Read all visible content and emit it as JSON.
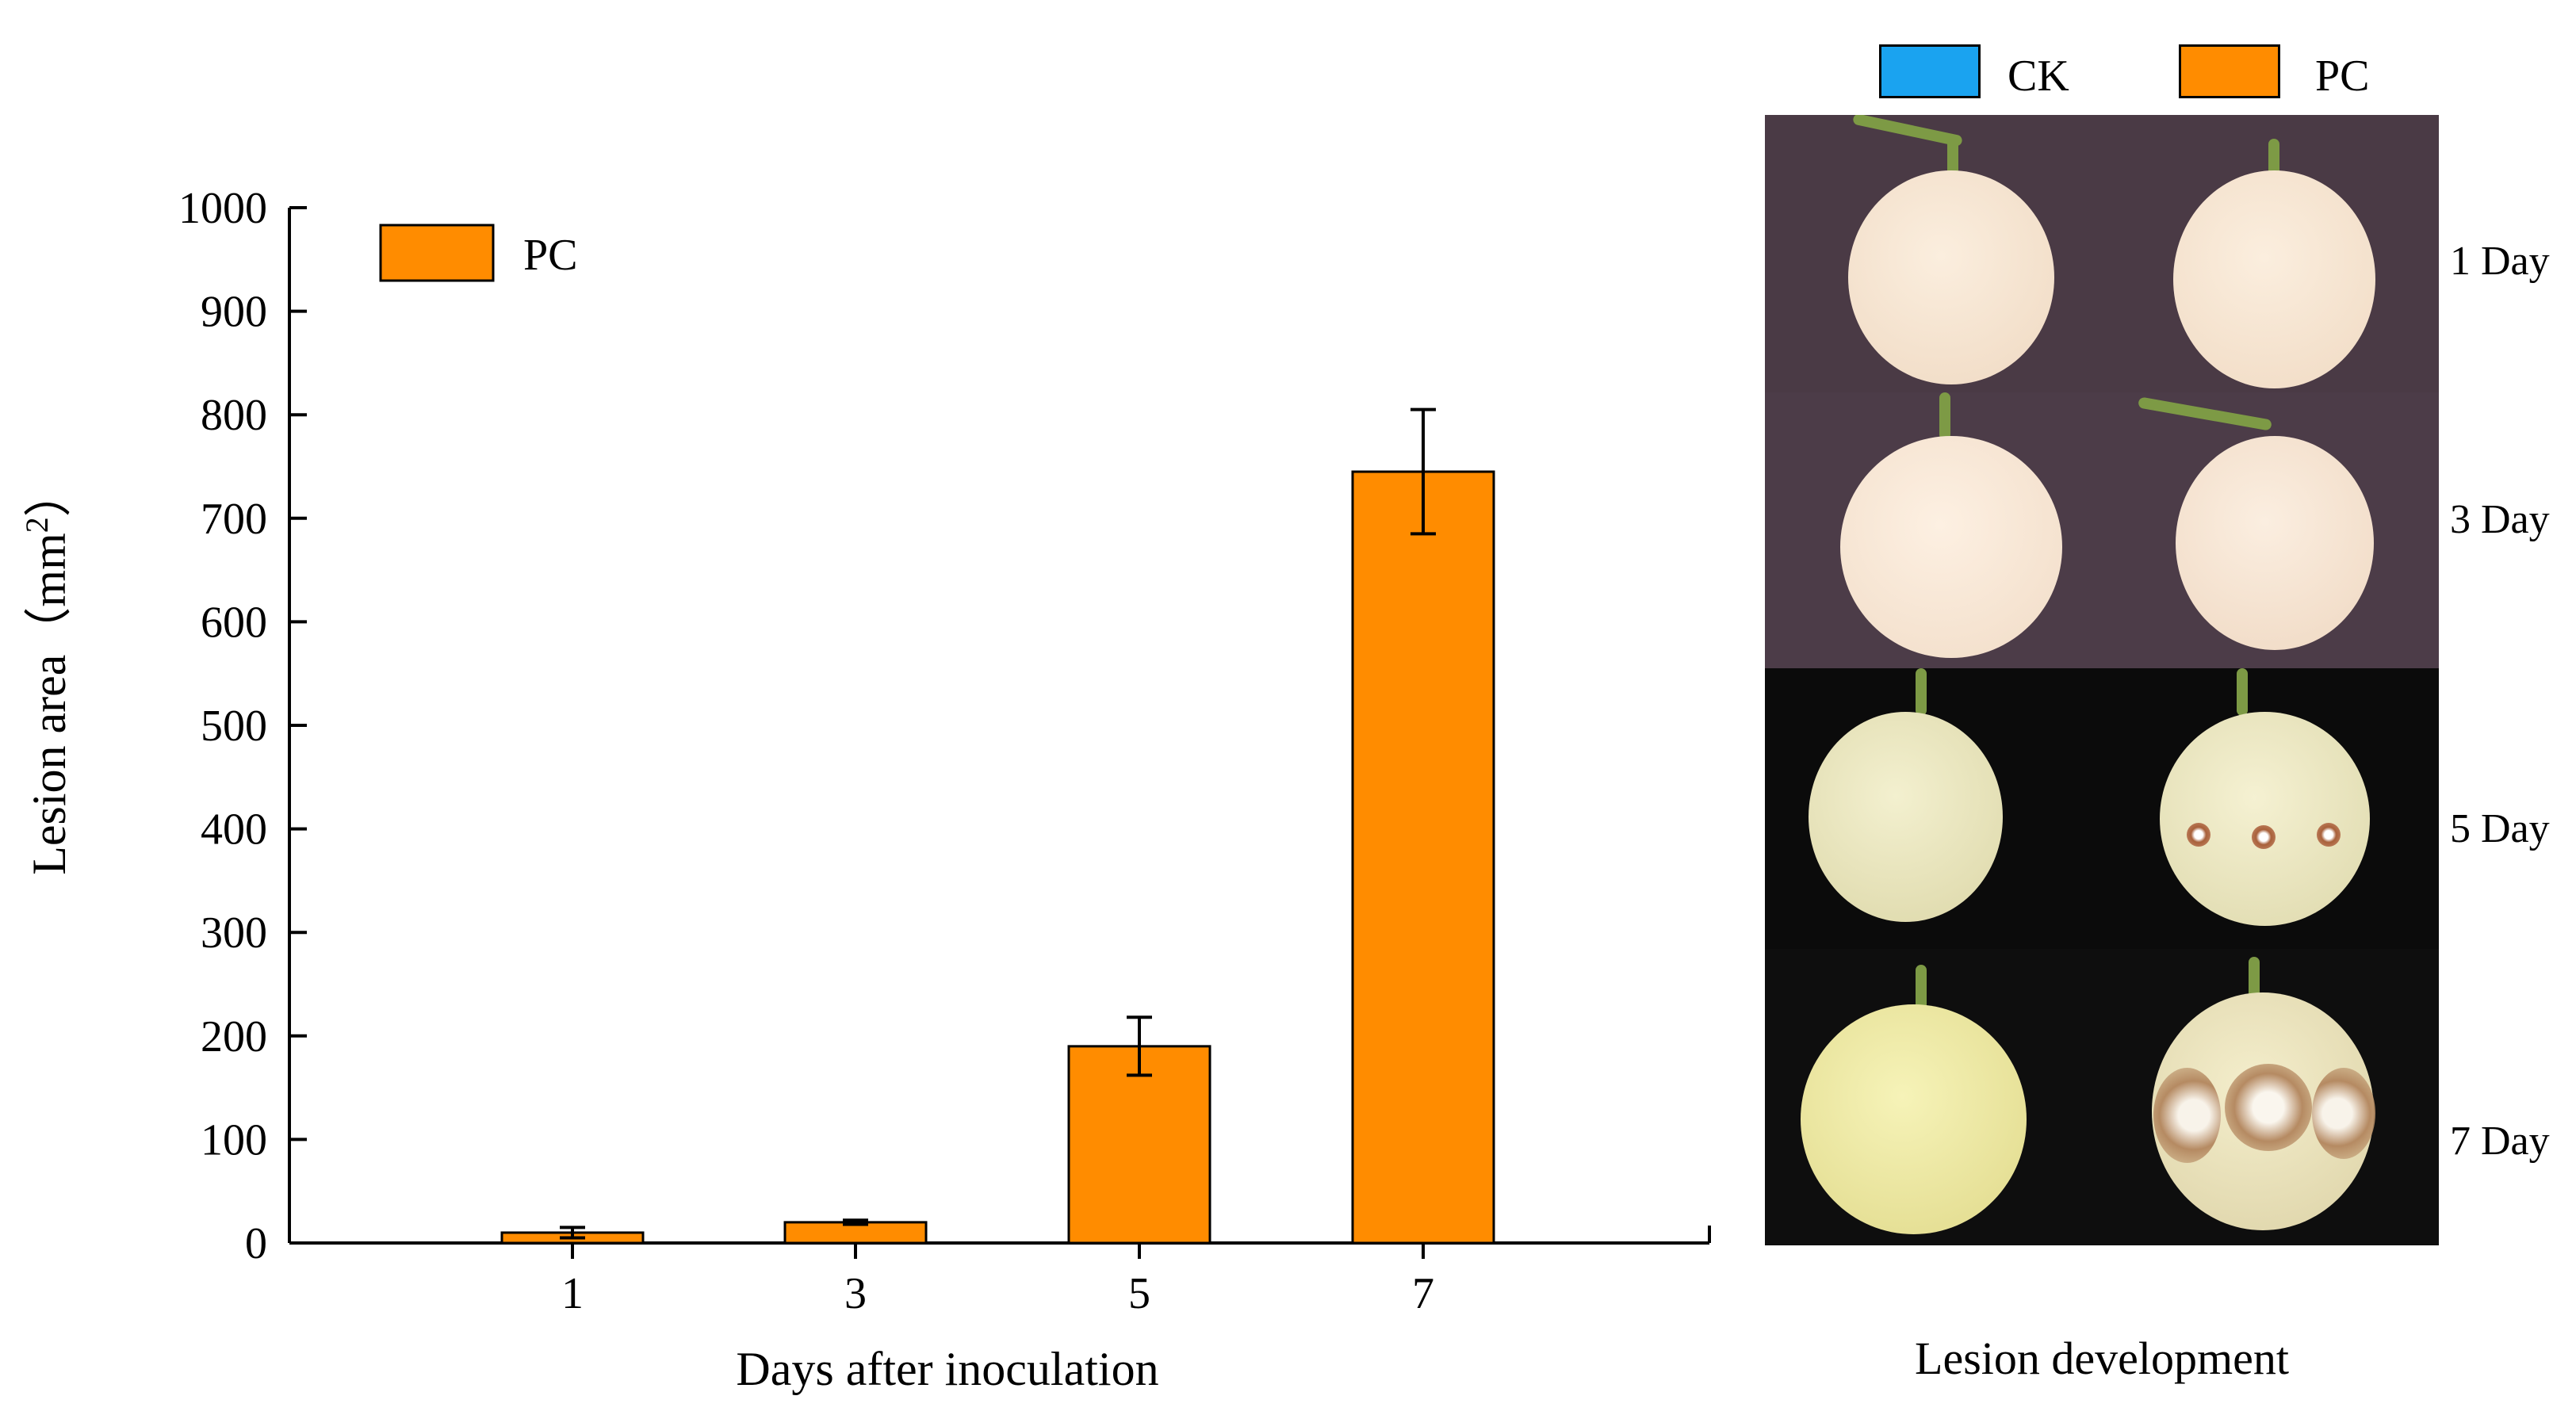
{
  "chart_data": {
    "type": "bar",
    "categories": [
      "1",
      "3",
      "5",
      "7"
    ],
    "series": [
      {
        "name": "PC",
        "values": [
          10,
          20,
          190,
          745
        ],
        "errors": [
          5,
          2,
          28,
          60
        ]
      }
    ],
    "xlabel": "Days after inoculation",
    "ylabel": "Lesion area（mm²）",
    "ylim": [
      0,
      1000
    ],
    "yticks": [
      0,
      100,
      200,
      300,
      400,
      500,
      600,
      700,
      800,
      900,
      1000
    ],
    "legend": [
      "PC"
    ],
    "legend_position": "top-left",
    "bar_color": "#ff8c00",
    "grid": false
  },
  "photo_panel": {
    "legend": [
      {
        "label": "CK",
        "color": "#1aa3f0"
      },
      {
        "label": "PC",
        "color": "#ff8c00"
      }
    ],
    "rows": [
      "1 Day",
      "3 Day",
      "5 Day",
      "7 Day"
    ],
    "caption": "Lesion development"
  }
}
